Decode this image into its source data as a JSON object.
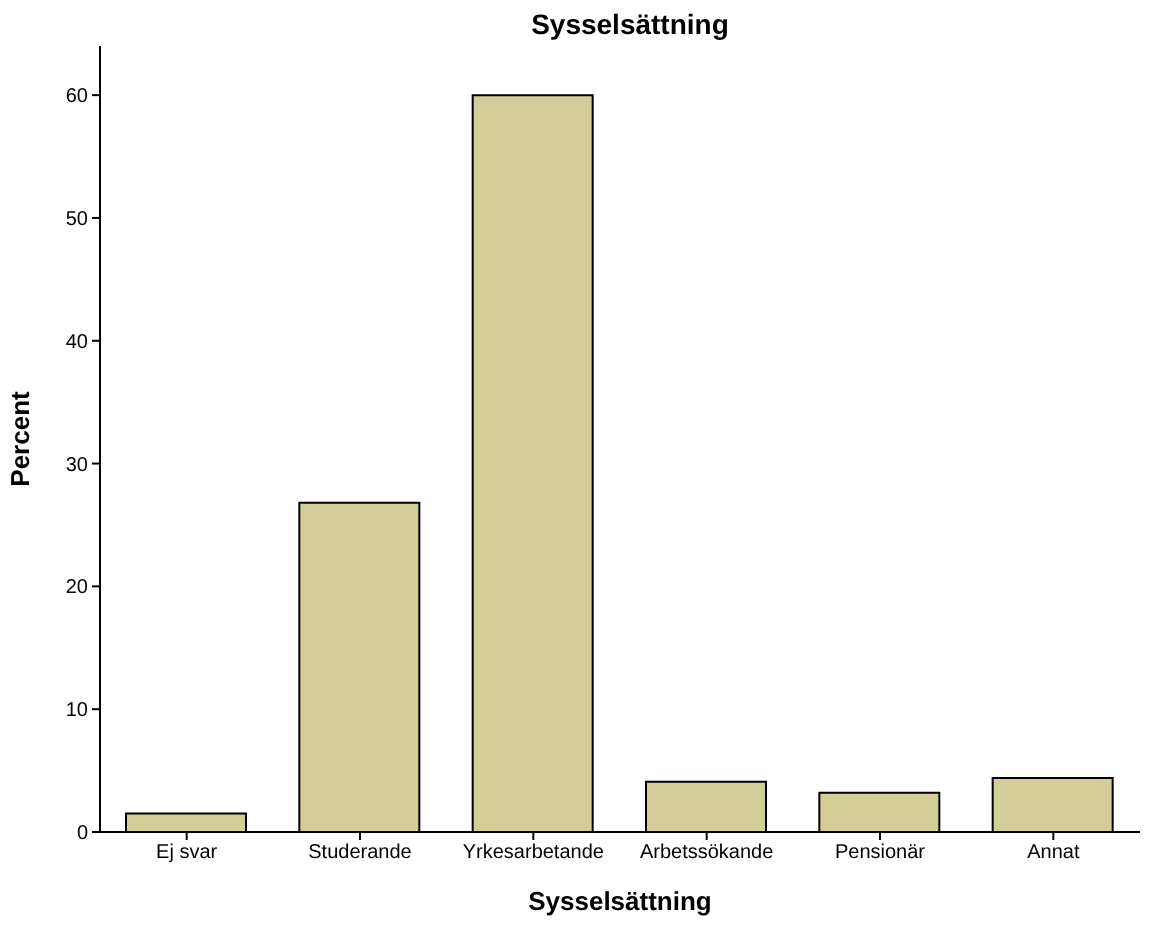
{
  "chart_data": {
    "type": "bar",
    "title": "Sysselsättning",
    "xlabel": "Sysselsättning",
    "ylabel": "Percent",
    "categories": [
      "Ej svar",
      "Studerande",
      "Yrkesarbetande",
      "Arbetssökande",
      "Pensionär",
      "Annat"
    ],
    "values": [
      1.5,
      26.8,
      60.0,
      4.1,
      3.2,
      4.4
    ],
    "color": "#d3ce97",
    "ylim": [
      0,
      64
    ],
    "yticks": [
      0,
      10,
      20,
      30,
      40,
      50,
      60
    ],
    "grid": false,
    "legend": false
  }
}
